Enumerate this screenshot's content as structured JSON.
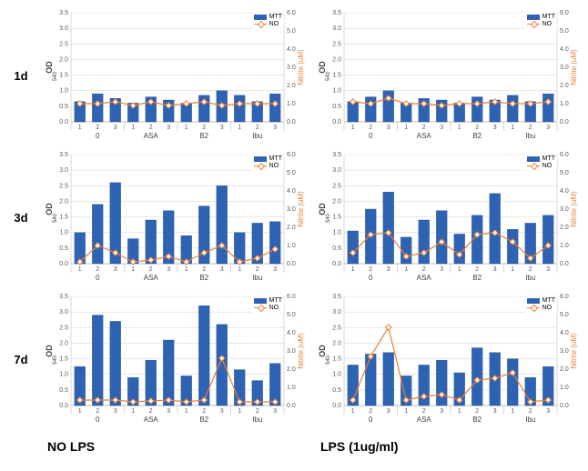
{
  "layout": {
    "rows": [
      "1d",
      "3d",
      "7d"
    ],
    "bottom_left": "NO    LPS",
    "bottom_right": "LPS (1ug/ml)"
  },
  "chart_style": {
    "type": "bar+line",
    "bar_color": "#2e62b3",
    "bar_border": "#1f4e94",
    "line_color": "#ed7d31",
    "marker_color": "#ffffff",
    "marker_border": "#ed7d31",
    "marker_shape": "diamond",
    "grid_color": "#d9d9d9",
    "axis_color": "#bfbfbf",
    "plot_bg": "#ffffff",
    "left_ylabel": "OD540",
    "left_ylabel_sub": "540",
    "right_ylabel": "Nitrite (uM)",
    "ylim_left": [
      0,
      3.5
    ],
    "ytick_left_step": 0.5,
    "ylim_right": [
      0,
      6.0
    ],
    "ytick_right_step": 1.0,
    "tick_fontsize": 7,
    "group_label_fontsize": 8,
    "legend_items": [
      {
        "label": "MTT",
        "type": "bar"
      },
      {
        "label": "NO",
        "type": "line"
      }
    ],
    "groups": [
      "0",
      "ASA",
      "B2",
      "Ibu"
    ],
    "subs": [
      "1",
      "2",
      "3"
    ]
  },
  "panels": [
    {
      "row": "1d",
      "col": "left",
      "bars": [
        0.65,
        0.9,
        0.75,
        0.6,
        0.8,
        0.7,
        0.6,
        0.85,
        1.0,
        0.85,
        0.65,
        0.9
      ],
      "line": [
        1.0,
        1.0,
        1.1,
        0.9,
        1.1,
        0.9,
        1.0,
        1.1,
        0.9,
        1.0,
        1.0,
        1.0
      ]
    },
    {
      "row": "1d",
      "col": "right",
      "bars": [
        0.65,
        0.8,
        1.0,
        0.6,
        0.75,
        0.7,
        0.6,
        0.8,
        0.7,
        0.85,
        0.65,
        0.9
      ],
      "line": [
        1.1,
        1.0,
        1.3,
        1.0,
        1.0,
        0.9,
        1.0,
        1.0,
        1.1,
        1.0,
        1.0,
        1.1
      ]
    },
    {
      "row": "3d",
      "col": "left",
      "bars": [
        1.0,
        1.9,
        2.6,
        0.8,
        1.4,
        1.7,
        0.9,
        1.85,
        2.5,
        1.0,
        1.3,
        1.35
      ],
      "line": [
        0.1,
        1.0,
        0.6,
        0.1,
        0.2,
        0.4,
        0.1,
        0.6,
        1.0,
        0.1,
        0.3,
        0.8
      ]
    },
    {
      "row": "3d",
      "col": "right",
      "bars": [
        1.05,
        1.75,
        2.3,
        0.85,
        1.4,
        1.7,
        0.95,
        1.55,
        2.25,
        1.1,
        1.3,
        1.55
      ],
      "line": [
        0.6,
        1.6,
        1.7,
        0.4,
        0.6,
        1.2,
        0.5,
        1.6,
        1.7,
        1.2,
        0.3,
        1.0
      ]
    },
    {
      "row": "7d",
      "col": "left",
      "bars": [
        1.25,
        2.9,
        2.7,
        0.9,
        1.45,
        2.1,
        0.95,
        3.2,
        2.6,
        1.15,
        0.8,
        1.35
      ],
      "line": [
        0.3,
        0.3,
        0.3,
        0.2,
        0.25,
        0.3,
        0.2,
        0.3,
        2.6,
        0.2,
        0.2,
        0.2
      ]
    },
    {
      "row": "7d",
      "col": "right",
      "bars": [
        1.3,
        1.65,
        1.7,
        0.95,
        1.3,
        1.45,
        1.05,
        1.85,
        1.7,
        1.5,
        0.9,
        1.25
      ],
      "line": [
        0.3,
        2.7,
        4.3,
        0.3,
        0.5,
        0.6,
        0.3,
        1.4,
        1.5,
        1.8,
        0.2,
        0.3
      ]
    }
  ]
}
